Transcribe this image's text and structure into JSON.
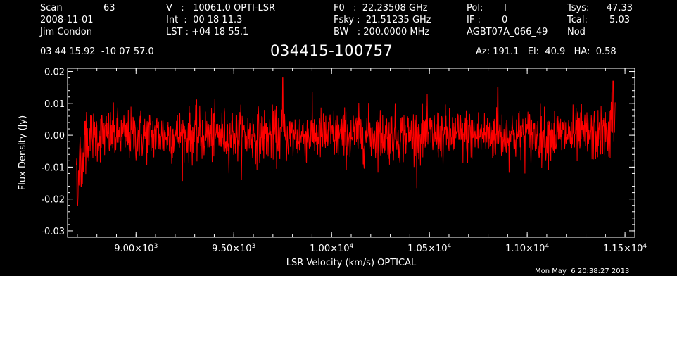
{
  "header": {
    "scan_label": "Scan",
    "scan_number": "63",
    "date": "2008-11-01",
    "observer": "Jim Condon",
    "v_line": "V   :   10061.0 OPTI-LSR",
    "int_line": "Int  :  00 18 11.3",
    "lst_line": "LST : +04 18 55.1",
    "f0_line": "F0   :  22.23508 GHz",
    "fsky_line": "Fsky :  21.51235 GHz",
    "bw_line": "BW   : 200.0000 MHz",
    "pol_label": "Pol:",
    "pol_value": "I",
    "if_label": "IF :",
    "if_value": "0",
    "project": "AGBT07A_066_49",
    "tsys_label": "Tsys:",
    "tsys_value": "47.33",
    "tcal_label": "Tcal:",
    "tcal_value": "5.03",
    "mode": "Nod",
    "coords": "03 44 15.92  -10 07 57.0",
    "source": "034415-100757",
    "az_el_ha": "Az: 191.1   El:  40.9   HA:  0.58"
  },
  "timestamp": "Mon May  6 20:38:27 2013",
  "chart_data": {
    "type": "line",
    "title": "034415-100757",
    "xlabel": "LSR Velocity (km/s) OPTICAL",
    "ylabel": "Flux Density (Jy)",
    "xlim": [
      8650,
      11550
    ],
    "ylim": [
      -0.032,
      0.021
    ],
    "x_ticks": [
      {
        "value": 9000,
        "mant": "9.00",
        "exp": "3"
      },
      {
        "value": 9500,
        "mant": "9.50",
        "exp": "3"
      },
      {
        "value": 10000,
        "mant": "1.00",
        "exp": "4"
      },
      {
        "value": 10500,
        "mant": "1.05",
        "exp": "4"
      },
      {
        "value": 11000,
        "mant": "1.10",
        "exp": "4"
      },
      {
        "value": 11500,
        "mant": "1.15",
        "exp": "4"
      }
    ],
    "y_ticks": [
      {
        "value": 0.02,
        "label": "0.02"
      },
      {
        "value": 0.01,
        "label": "0.01"
      },
      {
        "value": 0.0,
        "label": "0.00"
      },
      {
        "value": -0.01,
        "label": "-0.01"
      },
      {
        "value": -0.02,
        "label": "-0.02"
      },
      {
        "value": -0.03,
        "label": "-0.03"
      }
    ],
    "series": [
      {
        "color": "#ff0000",
        "x_start": 8695,
        "x_end": 11450,
        "n_points": 1600,
        "noise_rms": 0.0055,
        "features": [
          {
            "x": 8700,
            "y": -0.022
          },
          {
            "x": 8720,
            "y": -0.016
          },
          {
            "x": 9750,
            "y": 0.018
          },
          {
            "x": 10850,
            "y": 0.015
          },
          {
            "x": 11440,
            "y": 0.017
          }
        ]
      }
    ],
    "background": "#000000",
    "axis_color": "#ffffff",
    "grid": false
  }
}
